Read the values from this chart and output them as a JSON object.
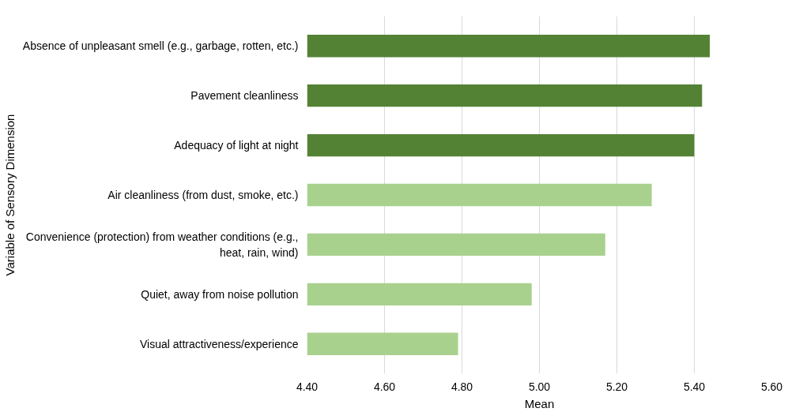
{
  "chart_data": {
    "type": "bar",
    "orientation": "horizontal",
    "xlabel": "Mean",
    "ylabel": "Variable of Sensory Dimension",
    "categories": [
      "Absence of unpleasant smell (e.g., garbage, rotten, etc.)",
      "Pavement cleanliness",
      "Adequacy of light at night",
      "Air cleanliness (from dust, smoke, etc.)",
      "Convenience (protection) from weather conditions (e.g.,\nheat, rain, wind)",
      "Quiet, away from noise pollution",
      "Visual attractiveness/experience"
    ],
    "values": [
      5.44,
      5.42,
      5.4,
      5.29,
      5.17,
      4.98,
      4.79
    ],
    "colors": [
      "#548235",
      "#548235",
      "#548235",
      "#a9d18e",
      "#a9d18e",
      "#a9d18e",
      "#a9d18e"
    ],
    "xlim": [
      4.4,
      5.6
    ],
    "xticks": [
      {
        "value": 4.4,
        "label": "4.40"
      },
      {
        "value": 4.6,
        "label": "4.60"
      },
      {
        "value": 4.8,
        "label": "4.80"
      },
      {
        "value": 5.0,
        "label": "5.00"
      },
      {
        "value": 5.2,
        "label": "5.20"
      },
      {
        "value": 5.4,
        "label": "5.40"
      },
      {
        "value": 5.6,
        "label": "5.60"
      }
    ],
    "grid": "x"
  }
}
